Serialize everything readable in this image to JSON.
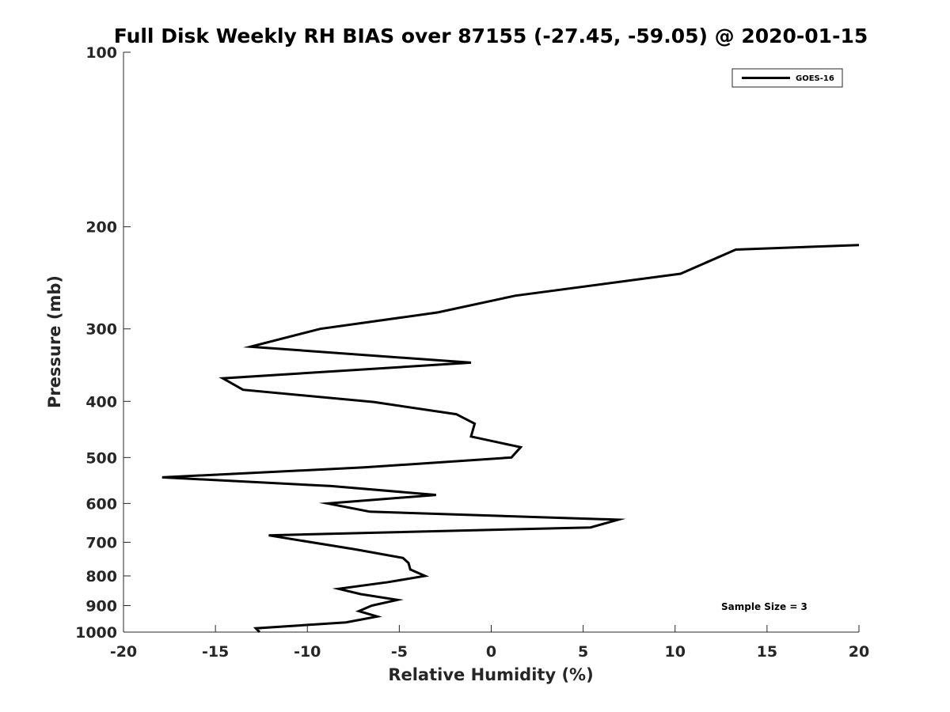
{
  "chart_data": {
    "type": "line",
    "title": "Full Disk Weekly RH BIAS over 87155 (-27.45, -59.05) @ 2020-01-15",
    "xlabel": "Relative Humidity (%)",
    "ylabel": "Pressure (mb)",
    "xlim": [
      -20,
      20
    ],
    "ylim": [
      100,
      1000
    ],
    "y_scale": "log",
    "y_reversed": true,
    "grid": false,
    "legend_position": "top-right",
    "x_ticks": [
      "-20",
      "-15",
      "-10",
      "-5",
      "0",
      "5",
      "10",
      "15",
      "20"
    ],
    "y_ticks": [
      "100",
      "200",
      "300",
      "400",
      "500",
      "600",
      "700",
      "800",
      "900",
      "1000"
    ],
    "annotation": "Sample Size = 3",
    "series": [
      {
        "name": "GOES-16",
        "color": "#000000",
        "x": [
          20.0,
          13.3,
          10.3,
          1.3,
          -2.9,
          -9.3,
          -13.1,
          -1.1,
          -14.6,
          -13.5,
          -6.4,
          -1.9,
          -0.9,
          -1.1,
          1.6,
          1.1,
          -6.9,
          -17.9,
          -8.7,
          -3.0,
          -8.9,
          -6.6,
          6.9,
          5.4,
          -12.1,
          -7.4,
          -4.8,
          -4.5,
          -4.4,
          -3.6,
          -5.6,
          -8.3,
          -7.1,
          -5.1,
          -6.5,
          -7.2,
          -6.2,
          -7.9,
          -12.8,
          -12.6
        ],
        "y": [
          215,
          219,
          241,
          263,
          281,
          300,
          322,
          343,
          365,
          382,
          401,
          421,
          437,
          460,
          480,
          500,
          520,
          541,
          560,
          580,
          600,
          620,
          640,
          660,
          681,
          720,
          745,
          760,
          780,
          800,
          820,
          842,
          860,
          880,
          900,
          920,
          940,
          962,
          985,
          1000
        ]
      }
    ]
  }
}
